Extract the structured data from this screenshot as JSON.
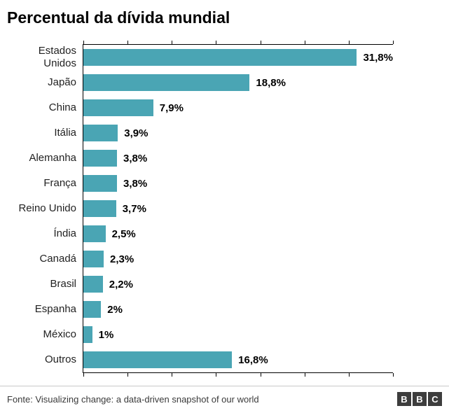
{
  "title": "Percentual da dívida mundial",
  "chart_data": {
    "type": "bar",
    "orientation": "horizontal",
    "title": "Percentual da dívida mundial",
    "categories": [
      "Estados Unidos",
      "Japão",
      "China",
      "Itália",
      "Alemanha",
      "França",
      "Reino Unido",
      "Índia",
      "Canadá",
      "Brasil",
      "Espanha",
      "México",
      "Outros"
    ],
    "values": [
      31.8,
      18.8,
      7.9,
      3.9,
      3.8,
      3.8,
      3.7,
      2.5,
      2.3,
      2.2,
      2,
      1,
      16.8
    ],
    "value_labels": [
      "31,8%",
      "18,8%",
      "7,9%",
      "3,9%",
      "3,8%",
      "3,8%",
      "3,7%",
      "2,5%",
      "2,3%",
      "2,2%",
      "2%",
      "1%",
      "16,8%"
    ],
    "xlabel": "",
    "ylabel": "",
    "xlim": [
      0,
      35
    ],
    "tick_step": 5,
    "grid": false,
    "legend": false,
    "bar_color": "#4aa5b4",
    "axis_color": "#000000"
  },
  "footer": {
    "source": "Fonte: Visualizing change: a data-driven snapshot of our world",
    "logo_letters": [
      "B",
      "B",
      "C"
    ]
  }
}
